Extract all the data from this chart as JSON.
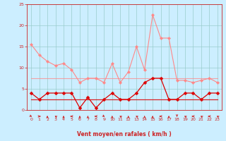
{
  "x": [
    0,
    1,
    2,
    3,
    4,
    5,
    6,
    7,
    8,
    9,
    10,
    11,
    12,
    13,
    14,
    15,
    16,
    17,
    18,
    19,
    20,
    21,
    22,
    23
  ],
  "rafales_max": [
    15.5,
    13.0,
    11.5,
    10.5,
    11.0,
    9.5,
    6.5,
    7.5,
    7.5,
    6.5,
    11.0,
    6.5,
    9.0,
    15.0,
    9.5,
    22.5,
    17.0,
    17.0,
    7.0,
    7.0,
    6.5,
    7.0,
    7.5,
    6.5
  ],
  "rafales_mean": [
    7.5,
    7.5,
    7.5,
    7.5,
    7.5,
    7.5,
    7.5,
    7.5,
    7.5,
    7.5,
    7.5,
    7.5,
    7.5,
    7.5,
    7.5,
    7.5,
    7.5,
    7.5,
    7.5,
    7.5,
    7.5,
    7.5,
    7.5,
    7.5
  ],
  "vent_max": [
    4.0,
    2.5,
    4.0,
    4.0,
    4.0,
    4.0,
    0.5,
    3.0,
    0.5,
    2.5,
    4.0,
    2.5,
    2.5,
    4.0,
    6.5,
    7.5,
    7.5,
    2.5,
    2.5,
    4.0,
    4.0,
    2.5,
    4.0,
    4.0
  ],
  "vent_mean": [
    2.5,
    2.5,
    2.5,
    2.5,
    2.5,
    2.5,
    2.5,
    2.5,
    2.5,
    2.5,
    2.5,
    2.5,
    2.5,
    2.5,
    2.5,
    2.5,
    2.5,
    2.5,
    2.5,
    2.5,
    2.5,
    2.5,
    2.5,
    2.5
  ],
  "wind_dirs": [
    "arrow_se",
    "arrow_e",
    "arrow_s",
    "arrow_nw",
    "arrow_s",
    "arrow_w",
    "arrow_s",
    "arrow_s",
    "arrow_w",
    "arrow_se",
    "arrow_s",
    "arrow_nw",
    "arrow_s",
    "arrow_nw",
    "arrow_s",
    "arrow_s",
    "arrow_w",
    "arrow_s",
    "arrow_n",
    "arrow_nw",
    "arrow_w",
    "arrow_nw",
    "arrow_w",
    "arrow_nw"
  ],
  "ylim": [
    0,
    25
  ],
  "xlim": [
    -0.5,
    23.5
  ],
  "yticks": [
    0,
    5,
    10,
    15,
    20,
    25
  ],
  "xticks": [
    0,
    1,
    2,
    3,
    4,
    5,
    6,
    7,
    8,
    9,
    10,
    11,
    12,
    13,
    14,
    15,
    16,
    17,
    18,
    19,
    20,
    21,
    22,
    23
  ],
  "xlabel": "Vent moyen/en rafales ( km/h )",
  "bg_color": "#cceeff",
  "grid_color": "#99cccc",
  "pink_color": "#ff8888",
  "red_color": "#dd0000",
  "arrow_color": "#cc2222"
}
